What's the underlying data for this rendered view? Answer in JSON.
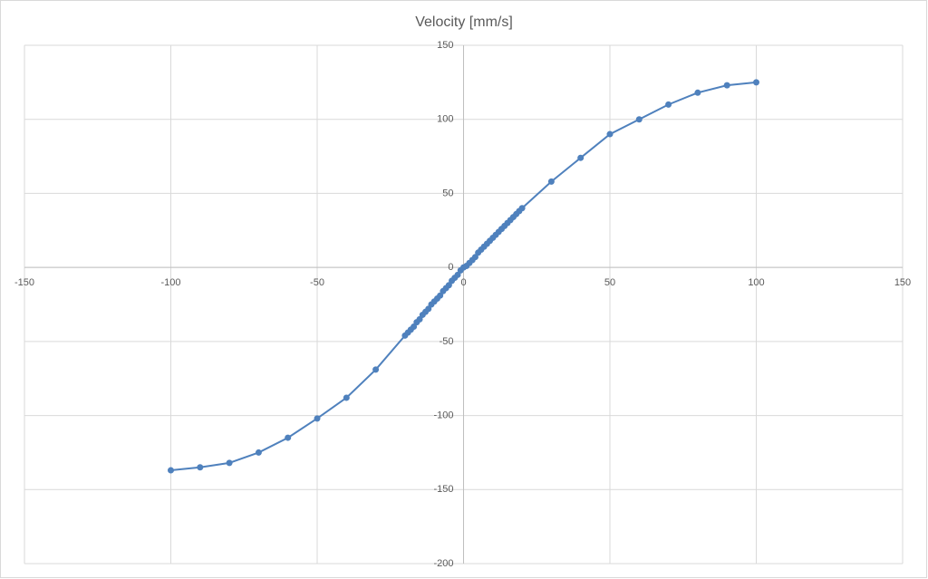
{
  "chart_data": {
    "type": "scatter",
    "title": "Velocity [mm/s]",
    "x": [
      -100,
      -90,
      -80,
      -70,
      -60,
      -50,
      -40,
      -30,
      -20,
      -19,
      -18,
      -17,
      -16,
      -15,
      -14,
      -13,
      -12,
      -11,
      -10,
      -9,
      -8,
      -7,
      -6,
      -5,
      -4,
      -3,
      -2,
      -1,
      0,
      1,
      2,
      3,
      4,
      5,
      6,
      7,
      8,
      9,
      10,
      11,
      12,
      13,
      14,
      15,
      16,
      17,
      18,
      19,
      20,
      30,
      40,
      50,
      60,
      70,
      80,
      90,
      100
    ],
    "series": [
      {
        "name": "Velocity [mm/s]",
        "color": "#4f81bd",
        "values": [
          -137,
          -135,
          -132,
          -125,
          -115,
          -102,
          -88,
          -69,
          -46,
          -44,
          -42,
          -40,
          -37,
          -35,
          -32,
          -30,
          -28,
          -25,
          -23,
          -21,
          -19,
          -16,
          -14,
          -12,
          -9,
          -7,
          -5,
          -2,
          0,
          1,
          3,
          5,
          7,
          10,
          12,
          14,
          16,
          18,
          20,
          22,
          24,
          26,
          28,
          30,
          32,
          34,
          36,
          38,
          40,
          58,
          74,
          90,
          100,
          110,
          118,
          123,
          125
        ]
      }
    ],
    "xlim": [
      -150,
      150
    ],
    "xticks": [
      -150,
      -100,
      -50,
      0,
      50,
      100,
      150
    ],
    "ylim": [
      -200,
      150
    ],
    "yticks": [
      -200,
      -150,
      -100,
      -50,
      0,
      50,
      100,
      150
    ],
    "grid": true
  }
}
